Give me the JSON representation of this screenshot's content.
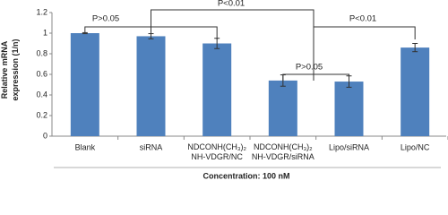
{
  "chart_data": {
    "type": "bar",
    "y_label": "Relative mRNA expression (1/n)",
    "x_label": "Concentration: 100 nM",
    "categories": [
      "Blank",
      "siRNA",
      "NDCONH(CH₃)₂\nNH-VDGR/NC",
      "NDCONH(CH₃)₂\nNH-VDGR/siRNA",
      "Lipo/siRNA",
      "Lipo/NC"
    ],
    "values": [
      1.0,
      0.97,
      0.9,
      0.54,
      0.53,
      0.86
    ],
    "errors": [
      0.005,
      0.025,
      0.05,
      0.055,
      0.055,
      0.04
    ],
    "color": "#4f81bd",
    "ylim": [
      0,
      1.2
    ],
    "yticks": [
      0,
      0.2,
      0.4,
      0.6,
      0.8,
      1,
      1.2
    ],
    "annotations": [
      "P>0.05",
      "P<0.01",
      "P>0.05",
      "P<0.01"
    ]
  }
}
